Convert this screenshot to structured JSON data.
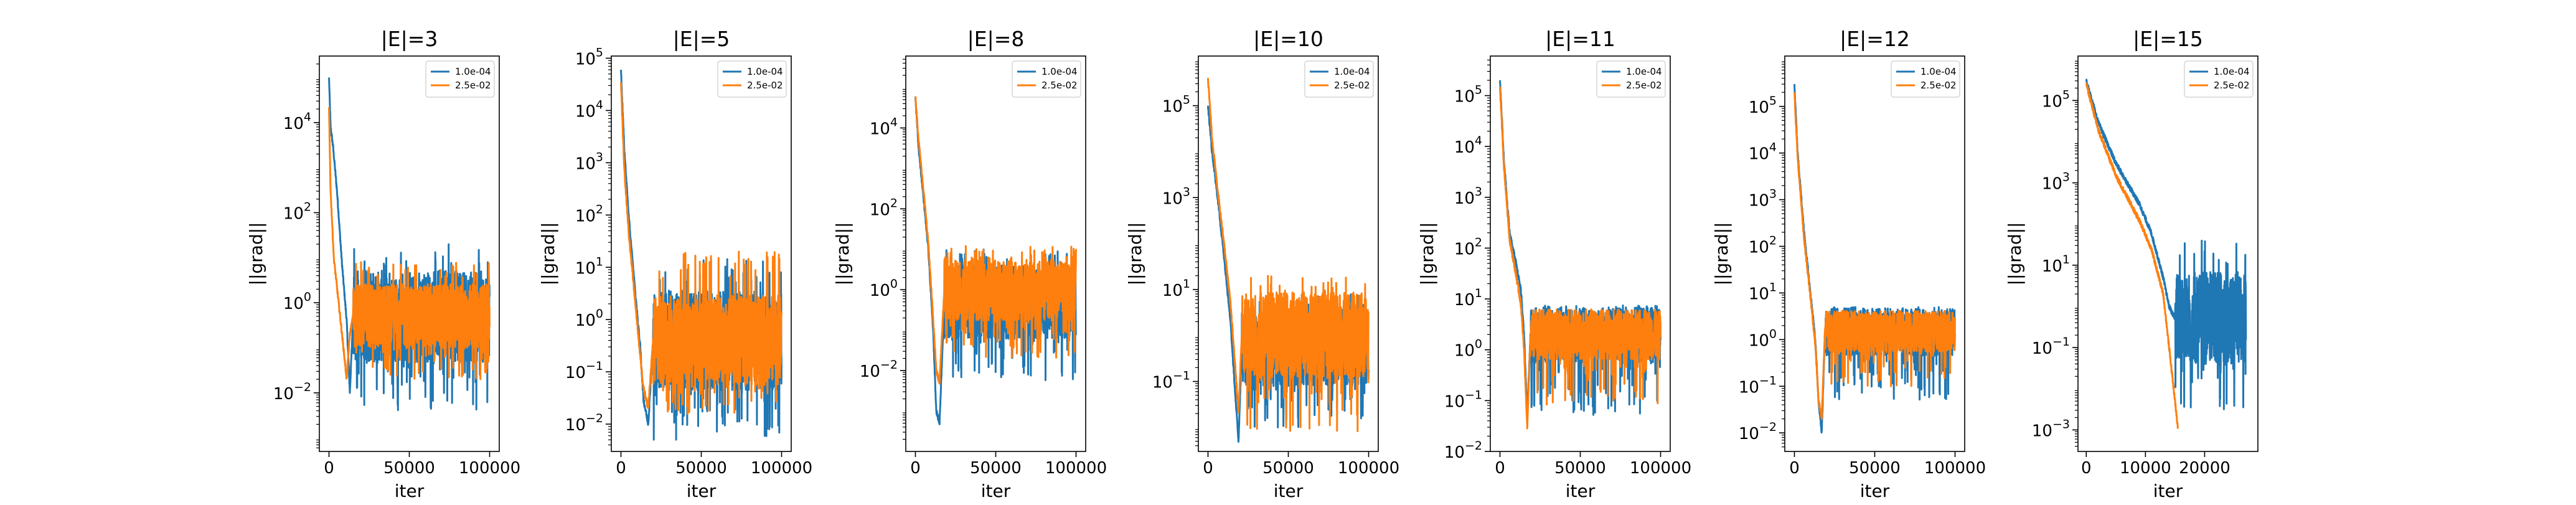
{
  "chart_data": [
    {
      "type": "line",
      "title": "|E|=3",
      "xlabel": "iter",
      "ylabel": "||grad||",
      "yscale": "log",
      "xlim": [
        -6000,
        106000
      ],
      "ylim": [
        0.0005,
        300000
      ],
      "xticks": [
        0,
        50000,
        100000
      ],
      "xtick_labels": [
        "0",
        "50000",
        "100000"
      ],
      "yticks": [
        0.01,
        1,
        100,
        10000
      ],
      "ytick_labels": [
        "10^-2",
        "10^0",
        "10^2",
        "10^4"
      ],
      "legend": "top-right",
      "series": [
        {
          "name": "1.0e-04",
          "color": "#1f77b4",
          "x": [
            0,
            1000,
            2500,
            5000,
            8000,
            11000,
            13000,
            15000,
            100000
          ],
          "y": [
            100000,
            8000,
            3000,
            300,
            8,
            0.4,
            0.01,
            0.5,
            0.5
          ],
          "noise": [
            0.004,
            20
          ],
          "x_end": 100000
        },
        {
          "name": "2.5e-02",
          "color": "#ff7f0e",
          "x": [
            0,
            1000,
            3000,
            6000,
            9000,
            11000,
            13000,
            15000,
            100000
          ],
          "y": [
            22000,
            300,
            10,
            1,
            0.1,
            0.02,
            0.2,
            0.5,
            0.5
          ],
          "noise": [
            0.02,
            8
          ],
          "x_end": 100000
        }
      ]
    },
    {
      "type": "line",
      "title": "|E|=5",
      "xlabel": "iter",
      "ylabel": "||grad||",
      "yscale": "log",
      "xlim": [
        -6000,
        106000
      ],
      "ylim": [
        0.003,
        110000
      ],
      "xticks": [
        0,
        50000,
        100000
      ],
      "xtick_labels": [
        "0",
        "50000",
        "100000"
      ],
      "yticks": [
        0.01,
        0.1,
        1,
        10,
        100,
        1000,
        10000,
        100000
      ],
      "ytick_labels": [
        "10^-2",
        "10^-1",
        "10^0",
        "10^1",
        "10^2",
        "10^3",
        "10^4",
        "10^5"
      ],
      "legend": "top-right",
      "series": [
        {
          "name": "1.0e-04",
          "color": "#1f77b4",
          "x": [
            0,
            2000,
            5000,
            9000,
            12000,
            14000,
            17000,
            20000,
            100000
          ],
          "y": [
            60000,
            2000,
            80,
            3,
            0.3,
            0.03,
            0.01,
            0.4,
            0.4
          ],
          "noise": [
            0.005,
            15
          ],
          "x_end": 100000
        },
        {
          "name": "2.5e-02",
          "color": "#ff7f0e",
          "x": [
            0,
            2000,
            5000,
            9000,
            12000,
            14000,
            17000,
            20000,
            100000
          ],
          "y": [
            35000,
            800,
            40,
            2,
            0.2,
            0.05,
            0.02,
            0.4,
            0.4
          ],
          "noise": [
            0.015,
            20
          ],
          "x_end": 100000
        }
      ]
    },
    {
      "type": "line",
      "title": "|E|=8",
      "xlabel": "iter",
      "ylabel": "||grad||",
      "yscale": "log",
      "xlim": [
        -6000,
        106000
      ],
      "ylim": [
        0.0001,
        600000
      ],
      "xticks": [
        0,
        50000,
        100000
      ],
      "xtick_labels": [
        "0",
        "50000",
        "100000"
      ],
      "yticks": [
        0.01,
        1,
        100,
        10000
      ],
      "ytick_labels": [
        "10^-2",
        "10^0",
        "10^2",
        "10^4"
      ],
      "legend": "top-right",
      "series": [
        {
          "name": "1.0e-04",
          "color": "#1f77b4",
          "x": [
            0,
            2000,
            5000,
            8000,
            11000,
            13000,
            15000,
            18000,
            100000
          ],
          "y": [
            60000,
            3000,
            200,
            10,
            0.1,
            0.001,
            0.0005,
            0.5,
            0.5
          ],
          "noise": [
            0.005,
            10
          ],
          "x_end": 100000
        },
        {
          "name": "2.5e-02",
          "color": "#ff7f0e",
          "x": [
            0,
            2000,
            5000,
            8000,
            11000,
            13000,
            15000,
            18000,
            100000
          ],
          "y": [
            60000,
            5000,
            300,
            15,
            0.2,
            0.01,
            0.005,
            1,
            1
          ],
          "noise": [
            0.02,
            12
          ],
          "x_end": 100000
        }
      ]
    },
    {
      "type": "line",
      "title": "|E|=10",
      "xlabel": "iter",
      "ylabel": "||grad||",
      "yscale": "log",
      "xlim": [
        -6000,
        106000
      ],
      "ylim": [
        0.003,
        1200000
      ],
      "xticks": [
        0,
        50000,
        100000
      ],
      "xtick_labels": [
        "0",
        "50000",
        "100000"
      ],
      "yticks": [
        0.1,
        10,
        1000,
        100000
      ],
      "ytick_labels": [
        "10^-1",
        "10^1",
        "10^3",
        "10^5"
      ],
      "legend": "top-right",
      "series": [
        {
          "name": "1.0e-04",
          "color": "#1f77b4",
          "x": [
            0,
            2500,
            6000,
            10000,
            14000,
            17000,
            19000,
            21000,
            100000
          ],
          "y": [
            100000,
            10000,
            1000,
            50,
            2,
            0.05,
            0.005,
            0.5,
            0.5
          ],
          "noise": [
            0.01,
            8
          ],
          "x_end": 100000
        },
        {
          "name": "2.5e-02",
          "color": "#ff7f0e",
          "x": [
            0,
            2500,
            6000,
            10000,
            14000,
            17000,
            19000,
            21000,
            100000
          ],
          "y": [
            400000,
            20000,
            1500,
            100,
            5,
            0.2,
            0.02,
            1,
            1
          ],
          "noise": [
            0.008,
            20
          ],
          "x_end": 100000
        }
      ]
    },
    {
      "type": "line",
      "title": "|E|=11",
      "xlabel": "iter",
      "ylabel": "||grad||",
      "yscale": "log",
      "xlim": [
        -6000,
        106000
      ],
      "ylim": [
        0.01,
        600000
      ],
      "xticks": [
        0,
        50000,
        100000
      ],
      "xtick_labels": [
        "0",
        "50000",
        "100000"
      ],
      "yticks": [
        0.01,
        0.1,
        1,
        10,
        100,
        1000,
        10000,
        100000
      ],
      "ytick_labels": [
        "10^-2",
        "10^-1",
        "10^0",
        "10^1",
        "10^2",
        "10^3",
        "10^4",
        "10^5"
      ],
      "legend": "top-right",
      "series": [
        {
          "name": "1.0e-04",
          "color": "#1f77b4",
          "x": [
            0,
            2500,
            6000,
            10000,
            13000,
            15000,
            17000,
            19000,
            100000
          ],
          "y": [
            200000,
            5000,
            200,
            50,
            15,
            2,
            0.05,
            2,
            2
          ],
          "noise": [
            0.05,
            6
          ],
          "x_end": 100000
        },
        {
          "name": "2.5e-02",
          "color": "#ff7f0e",
          "x": [
            0,
            2500,
            6000,
            10000,
            13000,
            15000,
            17000,
            19000,
            100000
          ],
          "y": [
            150000,
            4000,
            150,
            30,
            8,
            1,
            0.03,
            2,
            2
          ],
          "noise": [
            0.08,
            5
          ],
          "x_end": 100000
        }
      ]
    },
    {
      "type": "line",
      "title": "|E|=12",
      "xlabel": "iter",
      "ylabel": "||grad||",
      "yscale": "log",
      "xlim": [
        -6000,
        106000
      ],
      "ylim": [
        0.004,
        1200000
      ],
      "xticks": [
        0,
        50000,
        100000
      ],
      "xtick_labels": [
        "0",
        "50000",
        "100000"
      ],
      "yticks": [
        0.01,
        0.1,
        1,
        10,
        100,
        1000,
        10000,
        100000
      ],
      "ytick_labels": [
        "10^-2",
        "10^-1",
        "10^0",
        "10^1",
        "10^2",
        "10^3",
        "10^4",
        "10^5"
      ],
      "legend": "top-right",
      "series": [
        {
          "name": "1.0e-04",
          "color": "#1f77b4",
          "x": [
            0,
            2000,
            6000,
            10000,
            13000,
            15000,
            17000,
            19000,
            100000
          ],
          "y": [
            300000,
            10000,
            200,
            10,
            1,
            0.05,
            0.01,
            1.5,
            1.5
          ],
          "noise": [
            0.05,
            4
          ],
          "x_end": 100000
        },
        {
          "name": "2.5e-02",
          "color": "#ff7f0e",
          "x": [
            0,
            2000,
            6000,
            10000,
            13000,
            15000,
            17000,
            19000,
            100000
          ],
          "y": [
            200000,
            8000,
            150,
            8,
            0.8,
            0.05,
            0.02,
            1.5,
            1.5
          ],
          "noise": [
            0.1,
            4
          ],
          "x_end": 100000
        }
      ]
    },
    {
      "type": "line",
      "title": "|E|=15",
      "xlabel": "iter",
      "ylabel": "||grad||",
      "yscale": "log",
      "xlim": [
        -1400,
        29000
      ],
      "ylim": [
        0.0003,
        1200000
      ],
      "xticks": [
        0,
        10000,
        20000
      ],
      "xtick_labels": [
        "0",
        "10000",
        "20000"
      ],
      "yticks": [
        0.001,
        0.1,
        10,
        1000,
        100000
      ],
      "ytick_labels": [
        "10^-3",
        "10^-1",
        "10^1",
        "10^3",
        "10^5"
      ],
      "legend": "top-right",
      "series": [
        {
          "name": "1.0e-04",
          "color": "#1f77b4",
          "x": [
            0,
            2000,
            5000,
            9000,
            11000,
            13000,
            14000,
            15000,
            27000
          ],
          "y": [
            300000,
            30000,
            3000,
            300,
            60,
            5,
            1,
            0.5,
            0.5
          ],
          "noise": [
            0.003,
            40
          ],
          "x_end": 27000
        },
        {
          "name": "2.5e-02",
          "color": "#ff7f0e",
          "x": [
            0,
            2000,
            5000,
            9000,
            11000,
            13000,
            14000,
            15000,
            15500
          ],
          "y": [
            250000,
            20000,
            1500,
            120,
            25,
            2,
            0.1,
            0.005,
            0.001
          ],
          "noise": [
            1,
            1
          ],
          "x_end": 15500
        }
      ]
    }
  ]
}
